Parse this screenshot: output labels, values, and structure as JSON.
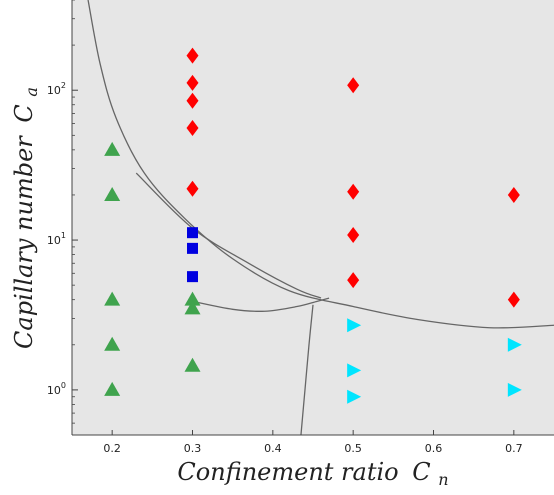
{
  "chart_data": {
    "type": "scatter",
    "title": "",
    "xlabel": "Confinement ratio",
    "xlabel_symbol": "C",
    "xlabel_subscript": "n",
    "ylabel": "Capillary number",
    "ylabel_symbol": "C",
    "ylabel_subscript": "a",
    "xlim": [
      0.15,
      0.75
    ],
    "ylim": [
      0.5,
      400
    ],
    "yscale": "log",
    "grid": false,
    "background_color": "#e6e6e6",
    "x_ticks": [
      {
        "value": 0.2,
        "label": "0.2"
      },
      {
        "value": 0.3,
        "label": "0.3"
      },
      {
        "value": 0.4,
        "label": "0.4"
      },
      {
        "value": 0.5,
        "label": "0.5"
      },
      {
        "value": 0.6,
        "label": "0.6"
      },
      {
        "value": 0.7,
        "label": "0.7"
      }
    ],
    "y_ticks": [
      {
        "value": 1,
        "base": "10",
        "exponent": "0"
      },
      {
        "value": 10,
        "base": "10",
        "exponent": "1"
      },
      {
        "value": 100,
        "base": "10",
        "exponent": "2"
      }
    ],
    "series": [
      {
        "marker": "triangle-up",
        "color": "#3fa34d",
        "points": [
          {
            "x": 0.2,
            "y": 40
          },
          {
            "x": 0.2,
            "y": 20
          },
          {
            "x": 0.2,
            "y": 4
          },
          {
            "x": 0.2,
            "y": 2
          },
          {
            "x": 0.2,
            "y": 1
          },
          {
            "x": 0.3,
            "y": 4
          },
          {
            "x": 0.3,
            "y": 3.5
          },
          {
            "x": 0.3,
            "y": 1.45
          }
        ]
      },
      {
        "marker": "diamond",
        "color": "#ff0000",
        "points": [
          {
            "x": 0.3,
            "y": 170
          },
          {
            "x": 0.3,
            "y": 112
          },
          {
            "x": 0.3,
            "y": 85
          },
          {
            "x": 0.3,
            "y": 56
          },
          {
            "x": 0.3,
            "y": 22
          },
          {
            "x": 0.5,
            "y": 108
          },
          {
            "x": 0.5,
            "y": 21
          },
          {
            "x": 0.5,
            "y": 10.8
          },
          {
            "x": 0.5,
            "y": 5.4
          },
          {
            "x": 0.7,
            "y": 20
          },
          {
            "x": 0.7,
            "y": 4
          }
        ]
      },
      {
        "marker": "square",
        "color": "#0000e0",
        "points": [
          {
            "x": 0.3,
            "y": 11.2
          },
          {
            "x": 0.3,
            "y": 8.8
          },
          {
            "x": 0.3,
            "y": 5.7
          }
        ]
      },
      {
        "marker": "triangle-right",
        "color": "#00e5ff",
        "points": [
          {
            "x": 0.5,
            "y": 2.7
          },
          {
            "x": 0.5,
            "y": 1.35
          },
          {
            "x": 0.5,
            "y": 0.9
          },
          {
            "x": 0.7,
            "y": 2.0
          },
          {
            "x": 0.7,
            "y": 1.0
          }
        ]
      }
    ],
    "boundary_curves": [
      {
        "color": "#666666",
        "points": [
          [
            0.17,
            400
          ],
          [
            0.185,
            150
          ],
          [
            0.205,
            65
          ],
          [
            0.24,
            28
          ],
          [
            0.29,
            14
          ],
          [
            0.35,
            7.5
          ],
          [
            0.42,
            4.6
          ],
          [
            0.5,
            3.6
          ],
          [
            0.58,
            2.95
          ],
          [
            0.67,
            2.6
          ],
          [
            0.75,
            2.7
          ]
        ]
      },
      {
        "color": "#666666",
        "points": [
          [
            0.23,
            28
          ],
          [
            0.3,
            12
          ],
          [
            0.37,
            7
          ],
          [
            0.43,
            4.7
          ],
          [
            0.46,
            4.1
          ]
        ]
      },
      {
        "color": "#666666",
        "points": [
          [
            0.3,
            3.9
          ],
          [
            0.35,
            3.45
          ],
          [
            0.39,
            3.35
          ],
          [
            0.43,
            3.6
          ],
          [
            0.455,
            3.9
          ],
          [
            0.47,
            4.1
          ]
        ]
      },
      {
        "color": "#666666",
        "points": [
          [
            0.45,
            3.7
          ],
          [
            0.445,
            2.0
          ],
          [
            0.44,
            1.0
          ],
          [
            0.435,
            0.5
          ]
        ]
      }
    ]
  }
}
